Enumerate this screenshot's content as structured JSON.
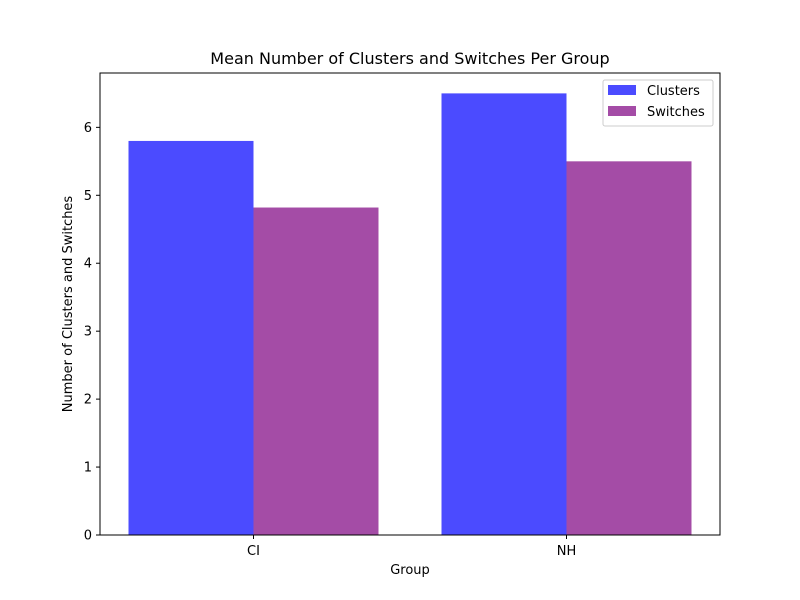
{
  "chart_data": {
    "type": "bar",
    "title": "Mean Number of Clusters and Switches Per Group",
    "xlabel": "Group",
    "ylabel": "Number of Clusters and Switches",
    "categories": [
      "CI",
      "NH"
    ],
    "series": [
      {
        "name": "Clusters",
        "values": [
          5.8,
          6.5
        ],
        "color": "#4b4bff"
      },
      {
        "name": "Switches",
        "values": [
          4.82,
          5.5
        ],
        "color": "#a44ca6"
      }
    ],
    "ylim": [
      0,
      6.8
    ],
    "yticks": [
      0,
      1,
      2,
      3,
      4,
      5,
      6
    ],
    "grid": false,
    "legend_position": "top-right"
  }
}
